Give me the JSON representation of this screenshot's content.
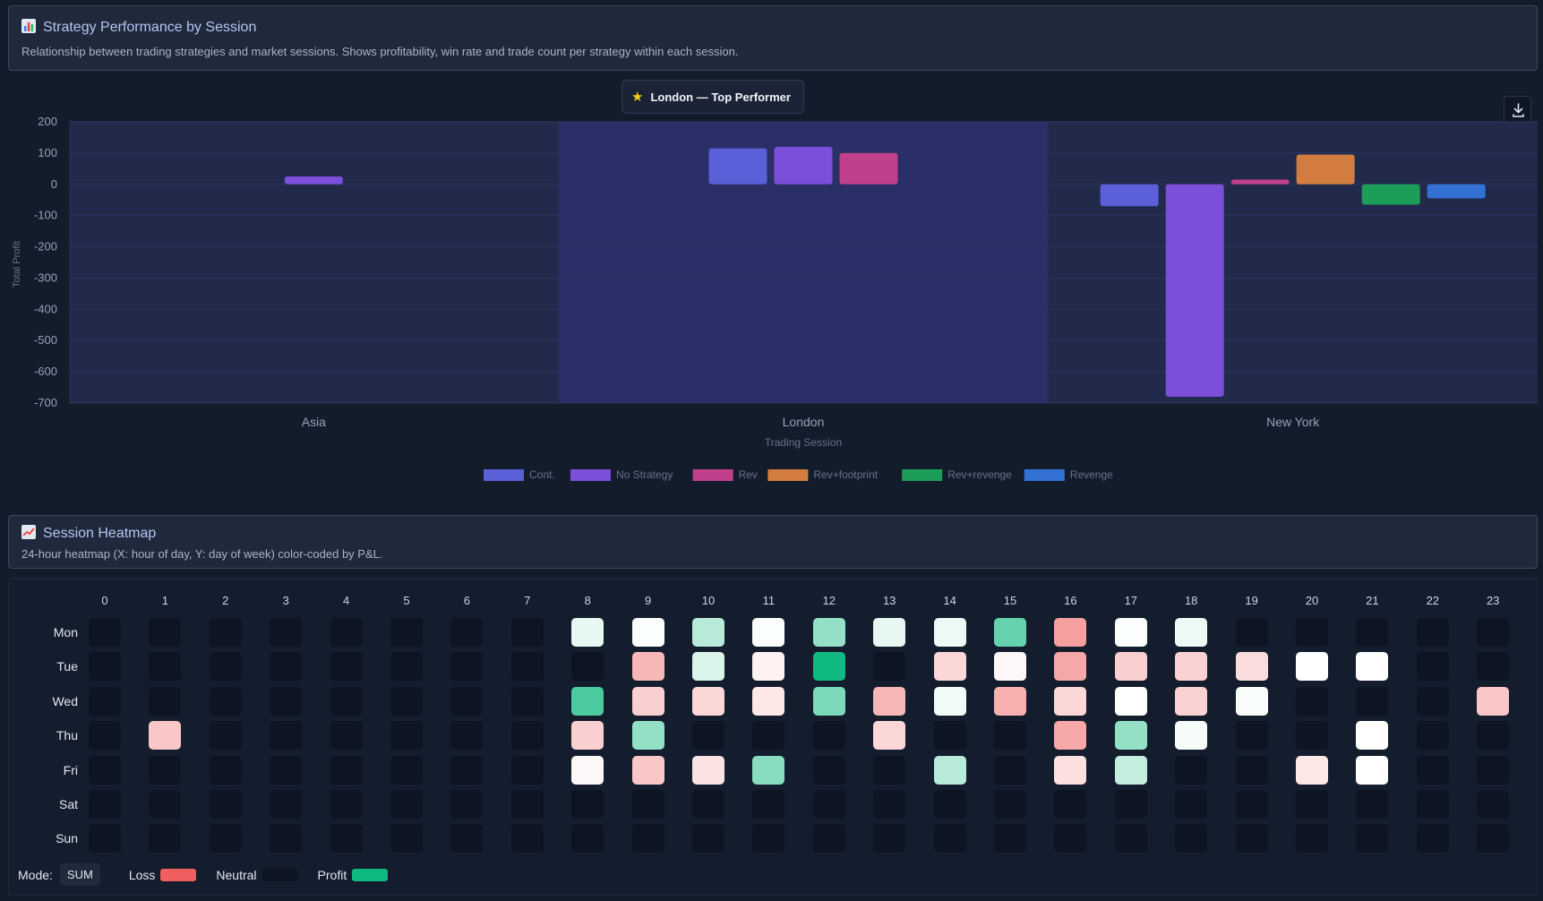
{
  "performance_card": {
    "title": "Strategy Performance by Session",
    "description": "Relationship between trading strategies and market sessions. Shows profitability, win rate and trade count per strategy within each session."
  },
  "badge": {
    "text": "London — Top Performer"
  },
  "chart_data": {
    "type": "bar",
    "categories": [
      "Asia",
      "London",
      "New York"
    ],
    "xlabel": "Trading Session",
    "ylabel": "Total Profit",
    "ylim": [
      -700,
      200
    ],
    "yticks": [
      200,
      100,
      0,
      -100,
      -200,
      -300,
      -400,
      -500,
      -600,
      -700
    ],
    "grid": true,
    "legend_position": "bottom",
    "highlight_category": "London",
    "series": [
      {
        "name": "Cont.",
        "color": "#5b5fd8",
        "values": [
          null,
          115,
          -70
        ]
      },
      {
        "name": "No Strategy",
        "color": "#7b4fd9",
        "values": [
          25,
          120,
          -680
        ]
      },
      {
        "name": "Rev",
        "color": "#c0408c",
        "values": [
          null,
          100,
          15
        ]
      },
      {
        "name": "Rev+footprint",
        "color": "#d27c3f",
        "values": [
          null,
          null,
          95
        ]
      },
      {
        "name": "Rev+revenge",
        "color": "#1d9e58",
        "values": [
          null,
          null,
          -65
        ]
      },
      {
        "name": "Revenge",
        "color": "#3372d4",
        "values": [
          null,
          null,
          -45
        ]
      }
    ]
  },
  "heatmap_card": {
    "title": "Session Heatmap",
    "description": "24-hour heatmap (X: hour of day, Y: day of week) color-coded by P&L."
  },
  "heatmap": {
    "hours": [
      "0",
      "1",
      "2",
      "3",
      "4",
      "5",
      "6",
      "7",
      "8",
      "9",
      "10",
      "11",
      "12",
      "13",
      "14",
      "15",
      "16",
      "17",
      "18",
      "19",
      "20",
      "21",
      "22",
      "23"
    ],
    "days": [
      "Mon",
      "Tue",
      "Wed",
      "Thu",
      "Fri",
      "Sat",
      "Sun"
    ],
    "cells": [
      [
        null,
        null,
        null,
        null,
        null,
        null,
        null,
        null,
        0.1,
        0.02,
        0.3,
        0.02,
        0.45,
        0.1,
        0.08,
        0.65,
        -0.6,
        0.02,
        0.08,
        null,
        null,
        null,
        null,
        null
      ],
      [
        null,
        null,
        null,
        null,
        null,
        null,
        null,
        null,
        null,
        -0.45,
        0.15,
        -0.08,
        1.0,
        null,
        -0.25,
        -0.05,
        -0.55,
        -0.3,
        -0.28,
        -0.22,
        0.0,
        0.0,
        null,
        null
      ],
      [
        null,
        null,
        null,
        null,
        null,
        null,
        null,
        null,
        0.75,
        -0.3,
        -0.25,
        -0.15,
        0.55,
        -0.45,
        0.06,
        -0.5,
        -0.25,
        0.0,
        -0.28,
        0.03,
        null,
        null,
        null,
        -0.35
      ],
      [
        null,
        -0.35,
        null,
        null,
        null,
        null,
        null,
        null,
        -0.3,
        0.45,
        null,
        null,
        null,
        -0.25,
        null,
        null,
        -0.55,
        0.45,
        0.04,
        null,
        null,
        0.0,
        null,
        null
      ],
      [
        null,
        null,
        null,
        null,
        null,
        null,
        null,
        null,
        -0.05,
        -0.35,
        -0.18,
        0.5,
        null,
        null,
        0.3,
        null,
        -0.2,
        0.25,
        null,
        null,
        -0.15,
        0.0,
        null,
        null
      ],
      [
        null,
        null,
        null,
        null,
        null,
        null,
        null,
        null,
        null,
        null,
        null,
        null,
        null,
        null,
        null,
        null,
        null,
        null,
        null,
        null,
        null,
        null,
        null,
        null
      ],
      [
        null,
        null,
        null,
        null,
        null,
        null,
        null,
        null,
        null,
        null,
        null,
        null,
        null,
        null,
        null,
        null,
        null,
        null,
        null,
        null,
        null,
        null,
        null,
        null
      ]
    ],
    "mode_label": "Mode:",
    "mode_value": "SUM",
    "legend": {
      "loss_label": "Loss",
      "neutral_label": "Neutral",
      "profit_label": "Profit",
      "loss_color": "#ef5f5f",
      "neutral_color": "#0d1422",
      "profit_color": "#10b981"
    }
  },
  "icons": {
    "performance_title_icon": "bar-chart-icon",
    "heatmap_title_icon": "line-chart-icon",
    "badge_icon": "star-icon",
    "download_icon": "download-icon"
  }
}
